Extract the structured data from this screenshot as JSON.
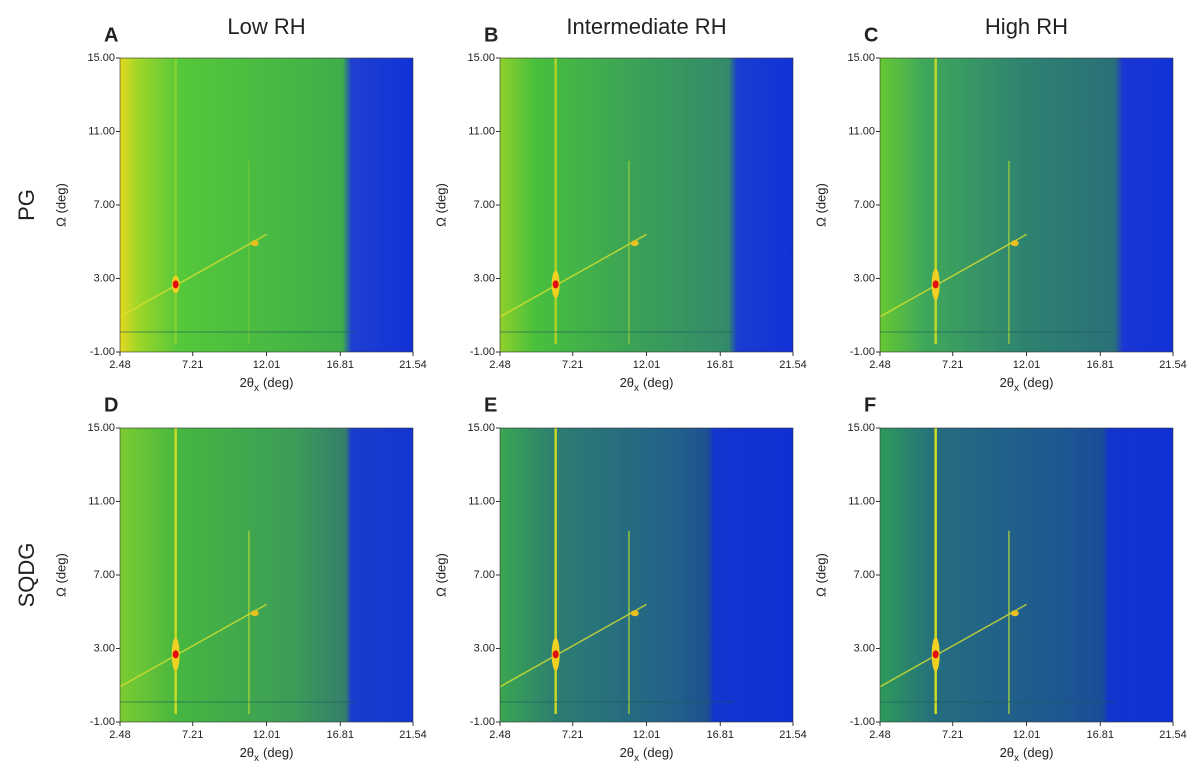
{
  "columns": [
    "Low RH",
    "Intermediate RH",
    "High RH"
  ],
  "rows": [
    "PG",
    "SQDG"
  ],
  "chart_data": [
    {
      "type": "heatmap",
      "label": "A",
      "xlim": [
        2.48,
        21.54
      ],
      "ylim": [
        -1,
        15
      ],
      "xticks": [
        2.48,
        7.21,
        12.01,
        16.81,
        21.54
      ],
      "yticks": [
        {
          "value": -1,
          "label": "-1.00"
        },
        {
          "value": 3,
          "label": "3.00"
        },
        {
          "value": 7,
          "label": "7.00"
        },
        {
          "value": 11,
          "label": "11.00"
        },
        {
          "value": 15,
          "label": "15.00"
        }
      ],
      "xlabel": {
        "main": "2θ",
        "sub": "x",
        "unit": "(deg)"
      },
      "ylabel": "Ω (deg)"
    },
    {
      "type": "heatmap",
      "label": "B",
      "xlim": [
        2.48,
        21.54
      ],
      "ylim": [
        -1,
        15
      ],
      "xticks": [
        2.48,
        7.21,
        12.01,
        16.81,
        21.54
      ],
      "yticks": [
        {
          "value": -1,
          "label": "-1.00"
        },
        {
          "value": 3,
          "label": "3.00"
        },
        {
          "value": 7,
          "label": "7.00"
        },
        {
          "value": 11,
          "label": "11.00"
        },
        {
          "value": 15,
          "label": "15.00"
        }
      ],
      "xlabel": {
        "main": "2θ",
        "sub": "x",
        "unit": "(deg)"
      },
      "ylabel": "Ω (deg)"
    },
    {
      "type": "heatmap",
      "label": "C",
      "xlim": [
        2.48,
        21.54
      ],
      "ylim": [
        -1,
        15
      ],
      "xticks": [
        2.48,
        7.21,
        12.01,
        16.81,
        21.54
      ],
      "yticks": [
        {
          "value": -1,
          "label": "-1.00"
        },
        {
          "value": 3,
          "label": "3.00"
        },
        {
          "value": 7,
          "label": "7.00"
        },
        {
          "value": 11,
          "label": "11.00"
        },
        {
          "value": 15,
          "label": "15.00"
        }
      ],
      "xlabel": {
        "main": "2θ",
        "sub": "x",
        "unit": "(deg)"
      },
      "ylabel": "Ω (deg)"
    },
    {
      "type": "heatmap",
      "label": "D",
      "xlim": [
        2.48,
        21.54
      ],
      "ylim": [
        -1,
        15
      ],
      "xticks": [
        2.48,
        7.21,
        12.01,
        16.81,
        21.54
      ],
      "yticks": [
        {
          "value": -1,
          "label": "-1.00"
        },
        {
          "value": 3,
          "label": "3.00"
        },
        {
          "value": 7,
          "label": "7.00"
        },
        {
          "value": 11,
          "label": "11.00"
        },
        {
          "value": 15,
          "label": "15.00"
        }
      ],
      "xlabel": {
        "main": "2θ",
        "sub": "x",
        "unit": "(deg)"
      },
      "ylabel": "Ω (deg)"
    },
    {
      "type": "heatmap",
      "label": "E",
      "xlim": [
        2.48,
        21.54
      ],
      "ylim": [
        -1,
        15
      ],
      "xticks": [
        2.48,
        7.21,
        12.01,
        16.81,
        21.54
      ],
      "yticks": [
        {
          "value": -1,
          "label": "-1.00"
        },
        {
          "value": 3,
          "label": "3.00"
        },
        {
          "value": 7,
          "label": "7.00"
        },
        {
          "value": 11,
          "label": "11.00"
        },
        {
          "value": 15,
          "label": "15.00"
        }
      ],
      "xlabel": {
        "main": "2θ",
        "sub": "x",
        "unit": "(deg)"
      },
      "ylabel": "Ω (deg)"
    },
    {
      "type": "heatmap",
      "label": "F",
      "xlim": [
        2.48,
        21.54
      ],
      "ylim": [
        -1,
        15
      ],
      "xticks": [
        2.48,
        7.21,
        12.01,
        16.81,
        21.54
      ],
      "yticks": [
        {
          "value": -1,
          "label": "-1.00"
        },
        {
          "value": 3,
          "label": "3.00"
        },
        {
          "value": 7,
          "label": "7.00"
        },
        {
          "value": 11,
          "label": "11.00"
        },
        {
          "value": 15,
          "label": "15.00"
        }
      ],
      "xlabel": {
        "main": "2θ",
        "sub": "x",
        "unit": "(deg)"
      },
      "ylabel": "Ω (deg)"
    }
  ]
}
